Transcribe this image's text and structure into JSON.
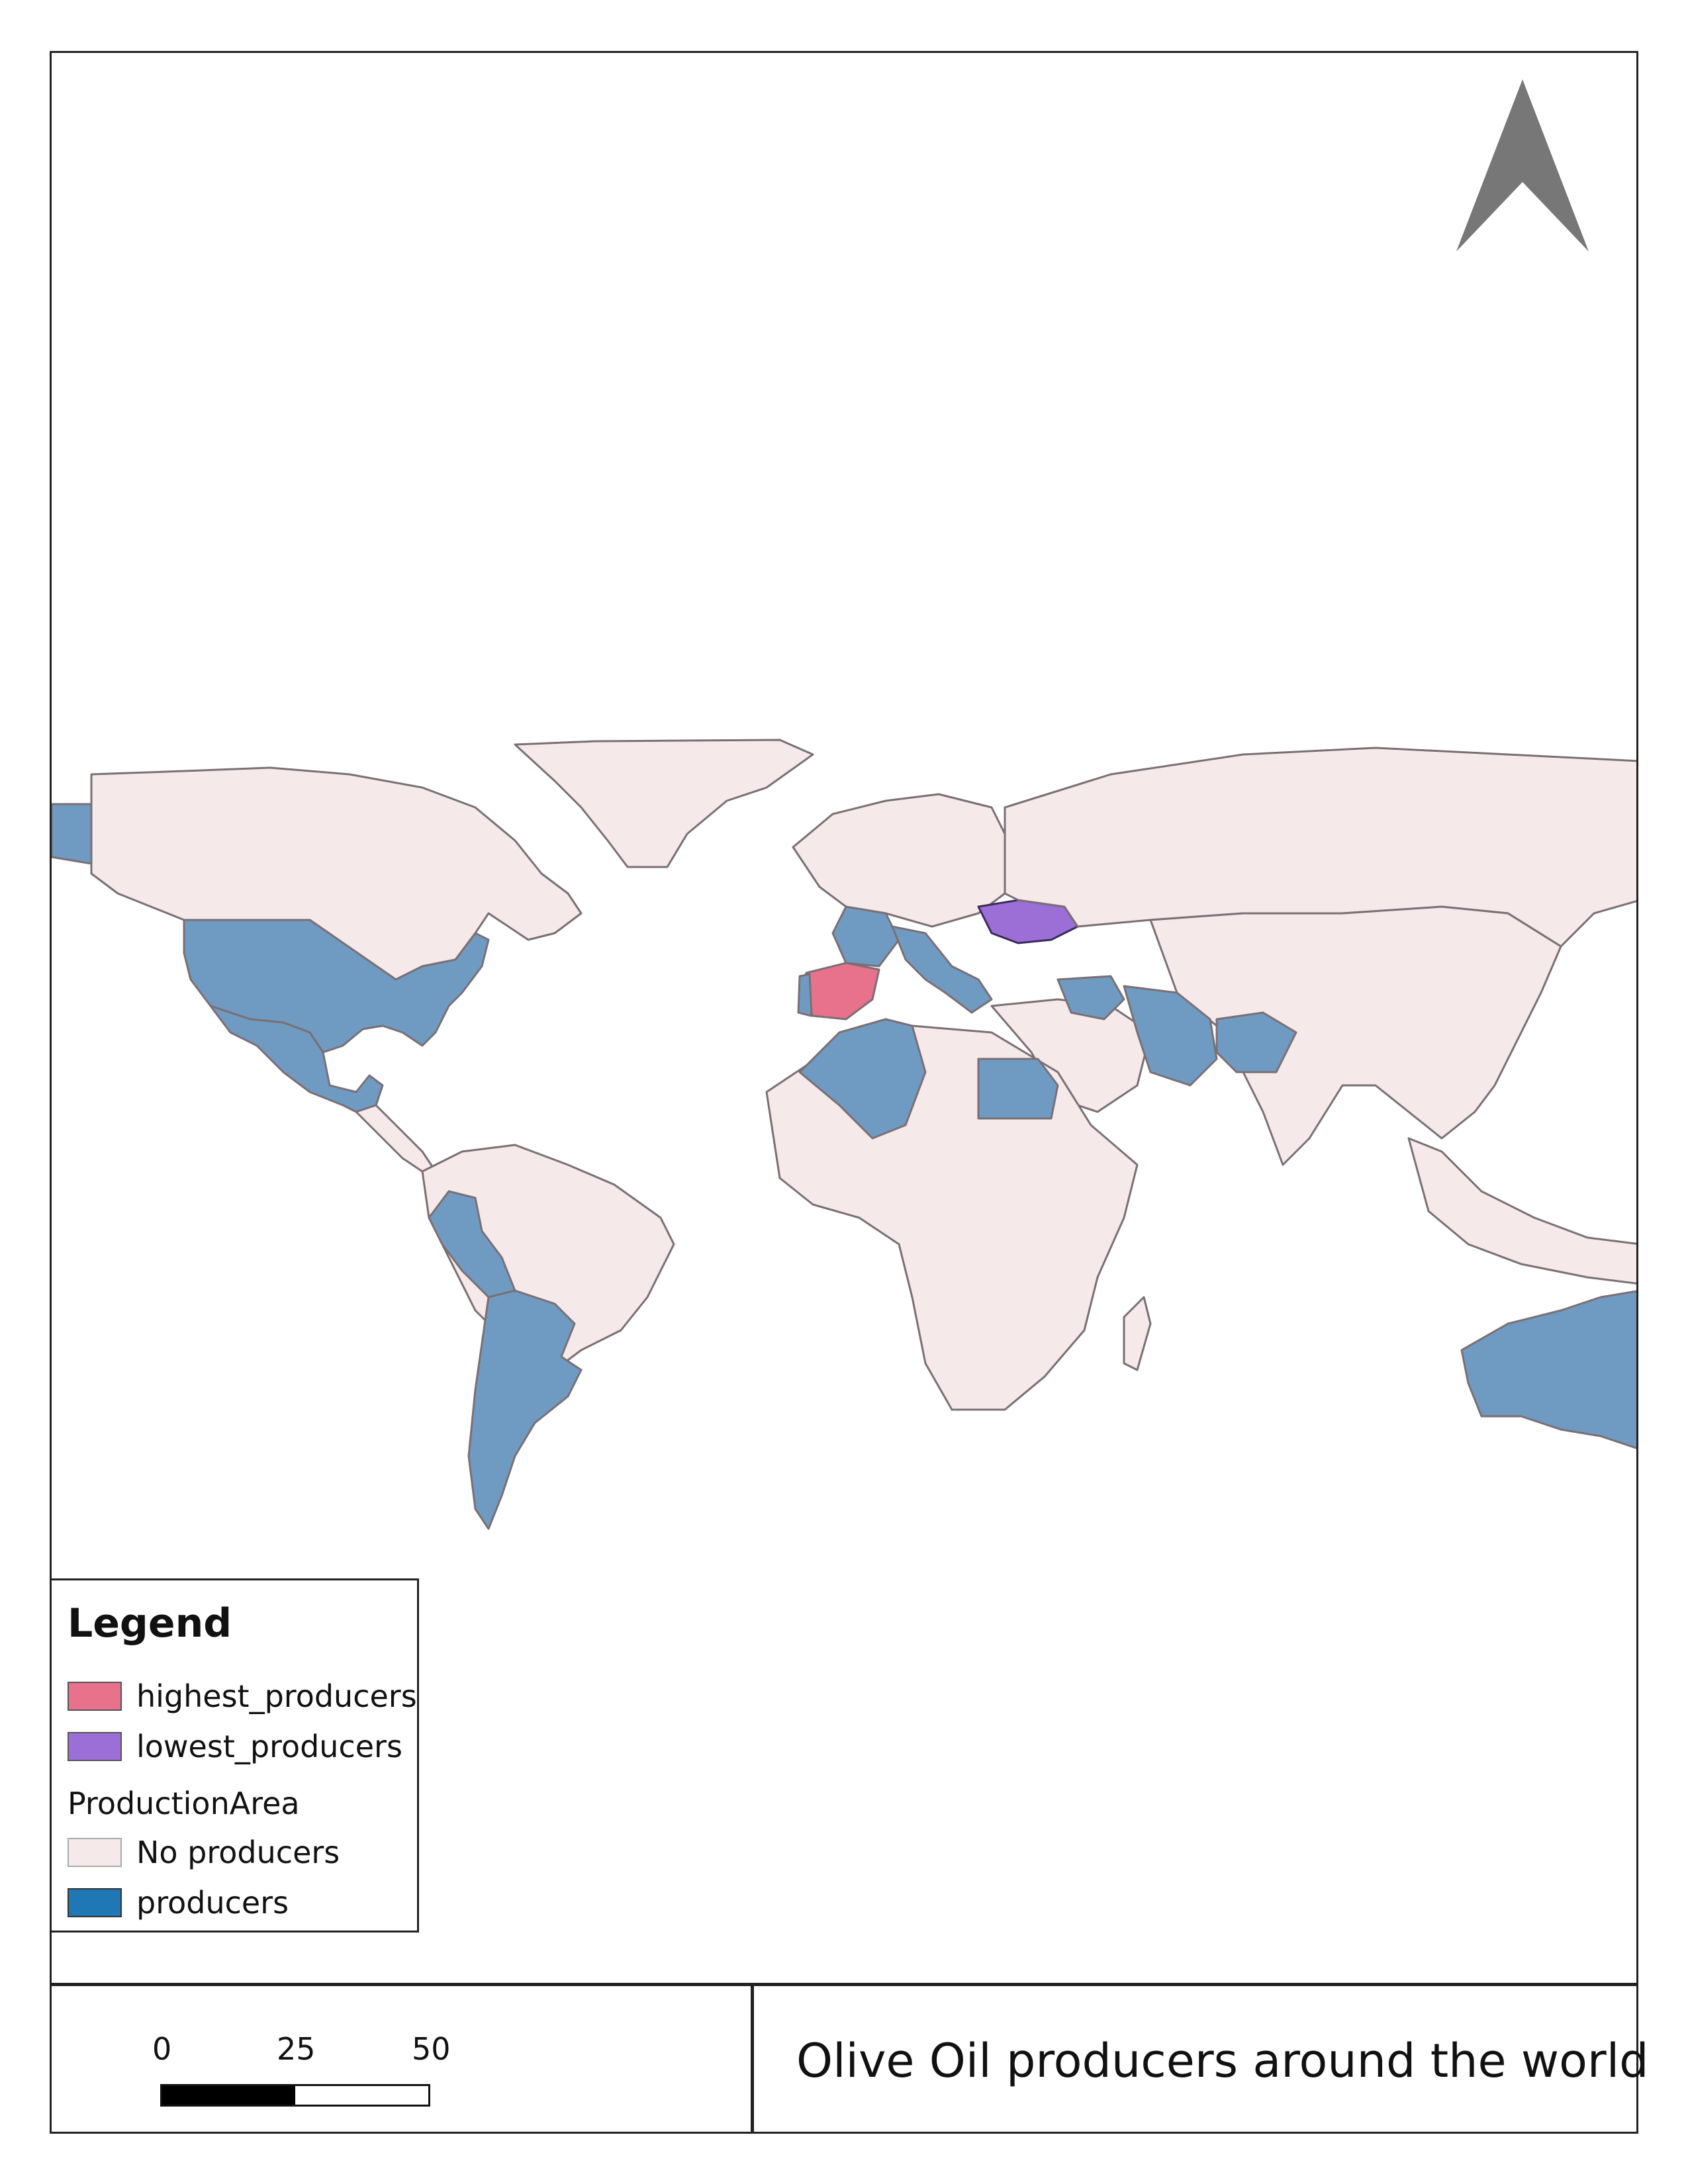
{
  "map": {
    "title": "Olive Oil producers around the world",
    "colors": {
      "highest_producers": "#e8718c",
      "lowest_producers": "#9b6fd6",
      "no_producers": "#f5e9ea",
      "producers": "#6f9bc2",
      "producers_legend": "#1f77b4",
      "outline": "#7a6f74"
    }
  },
  "legend": {
    "title": "Legend",
    "items": [
      {
        "label": "highest_producers",
        "color": "#e8718c"
      },
      {
        "label": "lowest_producers",
        "color": "#9b6fd6"
      }
    ],
    "group_title": "ProductionArea",
    "group_items": [
      {
        "label": "No producers",
        "color": "#f5e9ea"
      },
      {
        "label": "producers",
        "color": "#1f77b4"
      }
    ]
  },
  "scale_bar": {
    "labels": [
      "0",
      "25",
      "50"
    ]
  }
}
